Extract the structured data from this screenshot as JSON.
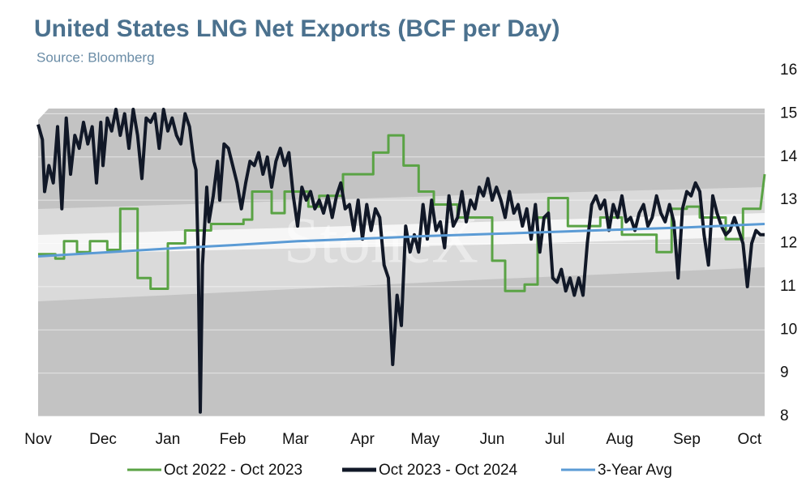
{
  "chart_data": {
    "type": "line",
    "title": "United States LNG Net Exports (BCF per Day)",
    "subtitle": "Source: Bloomberg",
    "watermark": "StoneX",
    "xlim": [
      0,
      336
    ],
    "xticks": [
      {
        "value": 0,
        "label": "Nov"
      },
      {
        "value": 30,
        "label": "Dec"
      },
      {
        "value": 60,
        "label": "Jan"
      },
      {
        "value": 90,
        "label": "Feb"
      },
      {
        "value": 119,
        "label": "Mar"
      },
      {
        "value": 150,
        "label": "Apr"
      },
      {
        "value": 179,
        "label": "May"
      },
      {
        "value": 210,
        "label": "Jun"
      },
      {
        "value": 239,
        "label": "Jul"
      },
      {
        "value": 269,
        "label": "Aug"
      },
      {
        "value": 300,
        "label": "Sep"
      },
      {
        "value": 329,
        "label": "Oct"
      }
    ],
    "ylim": [
      8,
      16
    ],
    "yticks": [
      8,
      9,
      10,
      11,
      12,
      13,
      14,
      15,
      16
    ],
    "grid": true,
    "legend": "bottom",
    "series": [
      {
        "name": "Oct 2022 - Oct 2023",
        "color": "#5aa345",
        "x": [
          0,
          8,
          8,
          12,
          12,
          18,
          18,
          24,
          24,
          32,
          32,
          38,
          38,
          46,
          46,
          52,
          52,
          60,
          60,
          68,
          68,
          80,
          80,
          95,
          95,
          99,
          99,
          108,
          108,
          114,
          114,
          125,
          125,
          130,
          130,
          141,
          141,
          155,
          155,
          162,
          162,
          169,
          169,
          176,
          176,
          183,
          183,
          194,
          194,
          210,
          210,
          216,
          216,
          225,
          225,
          231,
          231,
          236,
          236,
          245,
          245,
          260,
          260,
          270,
          270,
          286,
          286,
          293,
          293,
          300,
          300,
          306,
          306,
          318,
          318,
          326,
          326,
          334,
          336
        ],
        "values": [
          11.75,
          11.75,
          11.65,
          11.65,
          12.05,
          12.05,
          11.8,
          11.8,
          12.05,
          12.05,
          11.85,
          11.85,
          12.8,
          12.8,
          11.2,
          11.2,
          10.95,
          10.95,
          12.0,
          12.0,
          12.3,
          12.3,
          12.45,
          12.45,
          12.55,
          12.55,
          13.2,
          13.2,
          12.7,
          12.7,
          13.2,
          13.2,
          12.85,
          12.85,
          13.1,
          13.1,
          13.6,
          13.6,
          14.1,
          14.1,
          14.5,
          14.5,
          13.8,
          13.8,
          13.2,
          13.2,
          12.9,
          12.9,
          12.6,
          12.6,
          11.6,
          11.6,
          10.9,
          10.9,
          11.05,
          11.05,
          12.6,
          12.6,
          13.05,
          13.05,
          12.4,
          12.4,
          12.6,
          12.6,
          12.2,
          12.2,
          11.8,
          11.8,
          12.8,
          12.8,
          12.85,
          12.85,
          12.6,
          12.6,
          12.1,
          12.1,
          12.8,
          12.8,
          13.6
        ]
      },
      {
        "name": "Oct 2023 - Oct 2024",
        "color": "#111827",
        "x": [
          0,
          2,
          3,
          5,
          7,
          9,
          11,
          13,
          15,
          17,
          19,
          21,
          23,
          25,
          27,
          29,
          30,
          32,
          34,
          36,
          38,
          40,
          42,
          44,
          46,
          48,
          50,
          52,
          54,
          56,
          58,
          60,
          62,
          64,
          66,
          68,
          70,
          72,
          73,
          74,
          75,
          76,
          78,
          79,
          81,
          83,
          84,
          86,
          88,
          90,
          92,
          94,
          96,
          98,
          100,
          102,
          104,
          106,
          108,
          110,
          112,
          114,
          116,
          118,
          120,
          122,
          124,
          126,
          128,
          130,
          132,
          134,
          136,
          138,
          140,
          142,
          144,
          146,
          148,
          150,
          152,
          154,
          156,
          158,
          160,
          162,
          164,
          166,
          168,
          170,
          172,
          174,
          176,
          178,
          180,
          182,
          184,
          186,
          188,
          190,
          192,
          194,
          196,
          198,
          200,
          202,
          204,
          206,
          208,
          210,
          212,
          214,
          216,
          218,
          220,
          222,
          224,
          226,
          228,
          230,
          232,
          234,
          236,
          238,
          240,
          242,
          244,
          246,
          248,
          250,
          252,
          254,
          256,
          258,
          260,
          262,
          264,
          266,
          268,
          270,
          272,
          274,
          276,
          278,
          280,
          282,
          284,
          286,
          288,
          290,
          292,
          294,
          296,
          298,
          300,
          302,
          304,
          306,
          308,
          310,
          312,
          314,
          316,
          318,
          320,
          322,
          324,
          326,
          328,
          330,
          332,
          334,
          336
        ],
        "values": [
          14.75,
          14.4,
          13.2,
          13.8,
          13.4,
          14.7,
          12.8,
          14.9,
          13.6,
          14.5,
          14.2,
          14.8,
          14.3,
          14.7,
          13.4,
          14.8,
          13.8,
          14.9,
          14.6,
          15.1,
          14.5,
          15.0,
          14.2,
          15.1,
          14.5,
          13.5,
          14.9,
          14.8,
          15.0,
          14.2,
          15.1,
          14.6,
          14.9,
          14.5,
          14.3,
          15.0,
          14.7,
          13.9,
          13.7,
          11.8,
          8.1,
          11.5,
          13.3,
          12.5,
          13.1,
          13.9,
          13.0,
          14.3,
          14.2,
          13.8,
          13.4,
          12.8,
          13.4,
          13.9,
          13.8,
          14.1,
          13.6,
          14.0,
          13.3,
          13.9,
          14.2,
          13.8,
          14.1,
          13.1,
          12.4,
          13.3,
          13.0,
          13.2,
          12.8,
          13.0,
          12.7,
          13.1,
          12.6,
          13.1,
          13.4,
          12.8,
          12.9,
          12.3,
          13.0,
          12.1,
          12.9,
          12.3,
          12.8,
          12.6,
          11.5,
          11.2,
          9.2,
          10.8,
          10.1,
          12.4,
          11.8,
          12.2,
          11.8,
          12.9,
          12.1,
          13.0,
          12.3,
          12.5,
          11.9,
          13.1,
          12.4,
          12.6,
          13.2,
          12.5,
          13.0,
          12.8,
          13.3,
          13.1,
          13.5,
          13.0,
          13.3,
          13.0,
          12.6,
          13.2,
          12.7,
          12.9,
          12.4,
          12.8,
          12.1,
          12.9,
          11.8,
          12.6,
          12.7,
          11.2,
          11.1,
          11.4,
          10.9,
          11.2,
          10.8,
          11.2,
          10.8,
          12.0,
          12.9,
          13.1,
          12.8,
          13.0,
          12.3,
          12.9,
          12.6,
          13.1,
          12.5,
          12.6,
          12.3,
          12.7,
          12.9,
          12.4,
          12.6,
          13.1,
          12.7,
          12.5,
          12.9,
          12.5,
          11.2,
          12.8,
          13.2,
          13.1,
          13.4,
          13.2,
          12.2,
          11.5,
          13.1,
          12.7,
          12.4,
          12.2,
          12.3,
          12.6,
          12.3,
          12.0,
          11.0,
          12.0,
          12.3,
          12.2,
          12.2
        ]
      },
      {
        "name": "3-Year Avg",
        "color": "#5b9bd5",
        "x": [
          0,
          30,
          60,
          90,
          120,
          150,
          180,
          210,
          240,
          270,
          300,
          336
        ],
        "values": [
          11.7,
          11.79,
          11.88,
          11.96,
          12.05,
          12.11,
          12.17,
          12.22,
          12.27,
          12.32,
          12.37,
          12.45
        ]
      }
    ]
  }
}
